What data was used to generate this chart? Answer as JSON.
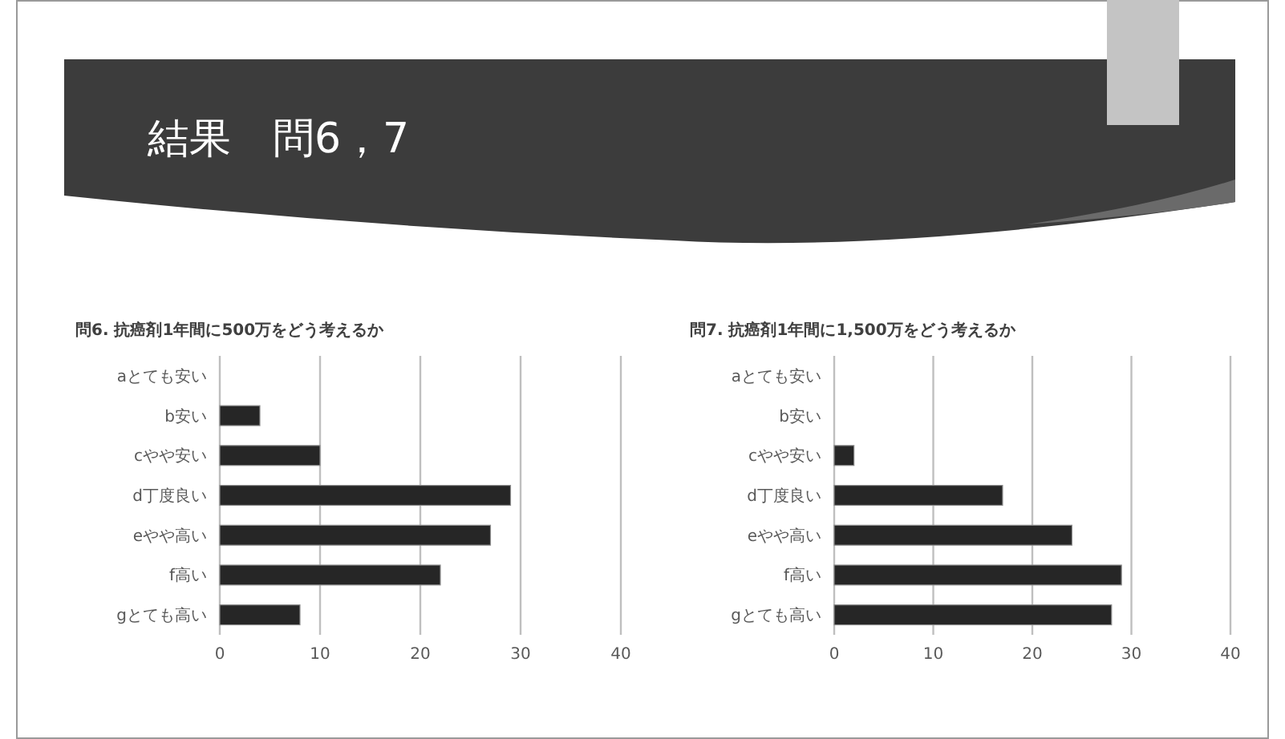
{
  "chart_data": [
    {
      "type": "bar",
      "orientation": "horizontal",
      "title": "問6. 抗癌剤1年間に500万をどう考えるか",
      "annotations": [
        "結果　問6，7"
      ],
      "categories": [
        "aとても安い",
        "b安い",
        "cやや安い",
        "d丁度良い",
        "eやや高い",
        "f高い",
        "gとても高い"
      ],
      "values": [
        0,
        4,
        10,
        29,
        27,
        22,
        8
      ],
      "color": "#262626",
      "xlim": [
        0,
        40
      ],
      "xticks": [
        0,
        10,
        20,
        30,
        40
      ],
      "grid": "x"
    },
    {
      "type": "bar",
      "orientation": "horizontal",
      "title": "問7. 抗癌剤1年間に1,500万をどう考えるか",
      "categories": [
        "aとても安い",
        "b安い",
        "cやや安い",
        "d丁度良い",
        "eやや高い",
        "f高い",
        "gとても高い"
      ],
      "values": [
        0,
        0,
        2,
        17,
        24,
        29,
        28
      ],
      "color": "#262626",
      "xlim": [
        0,
        40
      ],
      "xticks": [
        0,
        10,
        20,
        30,
        40
      ],
      "grid": "x"
    }
  ]
}
